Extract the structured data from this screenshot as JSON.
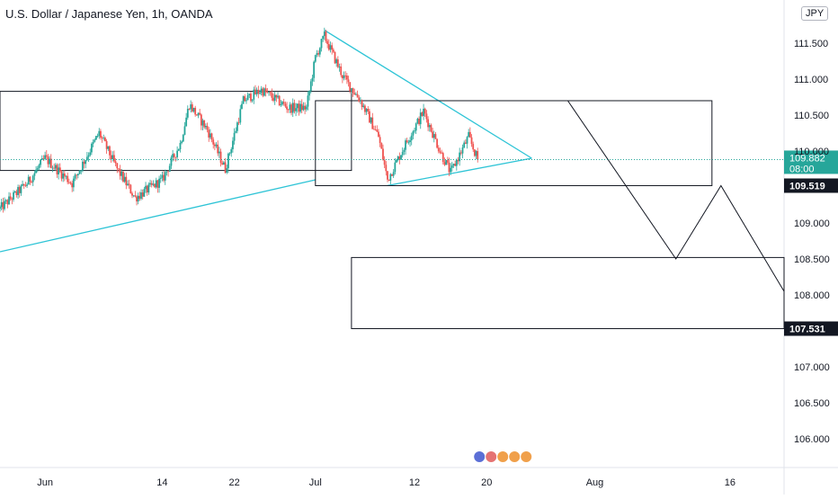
{
  "title": "U.S. Dollar / Japanese Yen, 1h, OANDA",
  "currency_label": "JPY",
  "colors": {
    "up": "#26a69a",
    "down": "#ef5350",
    "trendline": "#2ec4d6",
    "drawing": "#131722",
    "price_line": "#26a69a",
    "label_dark": "#131722"
  },
  "chart_data": {
    "type": "candlestick",
    "y_axis": {
      "ticks": [
        "111.500",
        "111.000",
        "110.500",
        "110.000",
        "109.000",
        "108.500",
        "108.000",
        "107.000",
        "106.500",
        "106.000"
      ],
      "tick_values": [
        111.5,
        111.0,
        110.5,
        110.0,
        109.0,
        108.5,
        108.0,
        107.0,
        106.5,
        106.0
      ]
    },
    "ylim": [
      105.6,
      112.1
    ],
    "x_axis": {
      "ticks": [
        "Jun",
        "14",
        "22",
        "Jul",
        "12",
        "20",
        "Aug",
        "16"
      ],
      "dates": [
        "2021-06-01",
        "2021-06-14",
        "2021-06-22",
        "2021-07-01",
        "2021-07-12",
        "2021-07-20",
        "2021-08-01",
        "2021-08-16"
      ]
    },
    "xlim": [
      "2021-05-27",
      "2021-08-22"
    ],
    "current_price": {
      "value": "109.882",
      "countdown": "08:00"
    },
    "price_labels": [
      {
        "value": "109.519",
        "price": 109.519
      },
      {
        "value": "107.531",
        "price": 107.531
      }
    ],
    "anchors": [
      {
        "date": "2021-05-27",
        "price": 109.2
      },
      {
        "date": "2021-05-30",
        "price": 109.55
      },
      {
        "date": "2021-06-01",
        "price": 109.9
      },
      {
        "date": "2021-06-04",
        "price": 109.55
      },
      {
        "date": "2021-06-07",
        "price": 110.25
      },
      {
        "date": "2021-06-09",
        "price": 109.75
      },
      {
        "date": "2021-06-11",
        "price": 109.35
      },
      {
        "date": "2021-06-14",
        "price": 109.6
      },
      {
        "date": "2021-06-16",
        "price": 110.1
      },
      {
        "date": "2021-06-17",
        "price": 110.65
      },
      {
        "date": "2021-06-19",
        "price": 110.3
      },
      {
        "date": "2021-06-21",
        "price": 109.75
      },
      {
        "date": "2021-06-23",
        "price": 110.7
      },
      {
        "date": "2021-06-25",
        "price": 110.85
      },
      {
        "date": "2021-06-28",
        "price": 110.6
      },
      {
        "date": "2021-06-30",
        "price": 110.6
      },
      {
        "date": "2021-07-01",
        "price": 111.3
      },
      {
        "date": "2021-07-02",
        "price": 111.6
      },
      {
        "date": "2021-07-04",
        "price": 111.05
      },
      {
        "date": "2021-07-06",
        "price": 110.7
      },
      {
        "date": "2021-07-08",
        "price": 110.2
      },
      {
        "date": "2021-07-09",
        "price": 109.6
      },
      {
        "date": "2021-07-11",
        "price": 110.1
      },
      {
        "date": "2021-07-13",
        "price": 110.55
      },
      {
        "date": "2021-07-15",
        "price": 109.95
      },
      {
        "date": "2021-07-16",
        "price": 109.7
      },
      {
        "date": "2021-07-18",
        "price": 110.2
      },
      {
        "date": "2021-07-19",
        "price": 109.88
      }
    ],
    "drawings": {
      "trendlines": [
        {
          "from": {
            "date": "2021-05-27",
            "price": 108.6
          },
          "to": {
            "date": "2021-07-01",
            "price": 109.6
          }
        },
        {
          "from": {
            "date": "2021-07-09",
            "price": 109.52
          },
          "to": {
            "date": "2021-07-25",
            "price": 109.9
          }
        },
        {
          "from": {
            "date": "2021-07-02",
            "price": 111.68
          },
          "to": {
            "date": "2021-07-25",
            "price": 109.9
          }
        }
      ],
      "rectangles": [
        {
          "from": {
            "date": "2021-05-27",
            "price": 110.83
          },
          "to": {
            "date": "2021-07-05",
            "price": 109.73
          }
        },
        {
          "from": {
            "date": "2021-07-01",
            "price": 110.7
          },
          "to": {
            "date": "2021-08-14",
            "price": 109.519
          }
        },
        {
          "from": {
            "date": "2021-07-05",
            "price": 108.52
          },
          "to": {
            "date": "2021-08-22",
            "price": 107.531
          }
        }
      ],
      "polylines": [
        [
          {
            "date": "2021-07-29",
            "price": 110.7
          },
          {
            "date": "2021-08-10",
            "price": 108.5
          },
          {
            "date": "2021-08-15",
            "price": 109.519
          },
          {
            "date": "2021-08-22",
            "price": 108.05
          }
        ]
      ]
    }
  }
}
